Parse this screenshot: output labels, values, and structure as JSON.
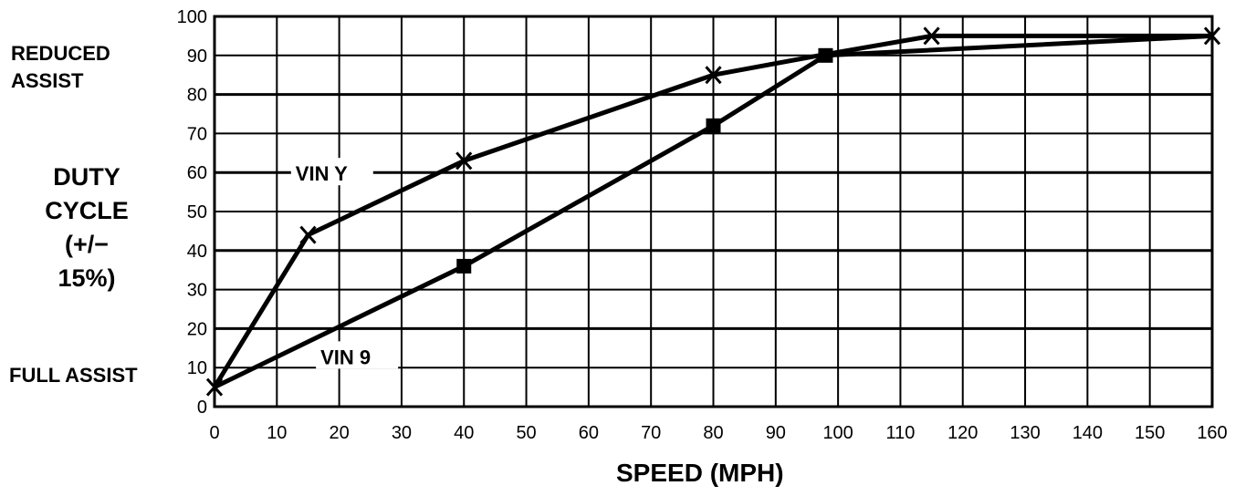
{
  "chart_data": {
    "type": "line",
    "title": "",
    "xlabel": "SPEED (MPH)",
    "ylabel": [
      "DUTY",
      "CYCLE",
      "(+/−",
      "15%)"
    ],
    "xlim": [
      0,
      160
    ],
    "ylim": [
      0,
      100
    ],
    "x_ticks": [
      0,
      10,
      20,
      30,
      40,
      50,
      60,
      70,
      80,
      90,
      100,
      110,
      120,
      130,
      140,
      150,
      160
    ],
    "y_ticks": [
      0,
      10,
      20,
      30,
      40,
      50,
      60,
      70,
      80,
      90,
      100
    ],
    "grid": true,
    "annotations": {
      "reduced_assist": [
        "REDUCED",
        "ASSIST"
      ],
      "full_assist": "FULL ASSIST"
    },
    "series": [
      {
        "name": "VIN Y",
        "marker": "x",
        "points": [
          [
            0,
            5
          ],
          [
            15,
            44
          ],
          [
            40,
            63
          ],
          [
            80,
            85
          ],
          [
            97,
            90
          ],
          [
            115,
            95
          ],
          [
            160,
            95
          ]
        ],
        "marked": [
          [
            0,
            5
          ],
          [
            15,
            44
          ],
          [
            40,
            63
          ],
          [
            80,
            85
          ],
          [
            115,
            95
          ],
          [
            160,
            95
          ]
        ]
      },
      {
        "name": "VIN 9",
        "marker": "square",
        "points": [
          [
            0,
            5
          ],
          [
            40,
            36
          ],
          [
            80,
            72
          ],
          [
            98,
            90
          ],
          [
            160,
            95
          ]
        ],
        "marked": [
          [
            40,
            36
          ],
          [
            80,
            72
          ],
          [
            98,
            90
          ]
        ]
      }
    ]
  }
}
